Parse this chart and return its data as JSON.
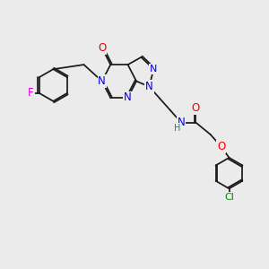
{
  "background_color": "#ebebeb",
  "bond_color": "#1a1a1a",
  "atom_colors": {
    "N": "#0000ee",
    "O": "#ee0000",
    "F": "#dd00dd",
    "Cl": "#008800",
    "H": "#008888",
    "C": "#1a1a1a"
  },
  "figsize": [
    3.0,
    3.0
  ],
  "dpi": 100
}
